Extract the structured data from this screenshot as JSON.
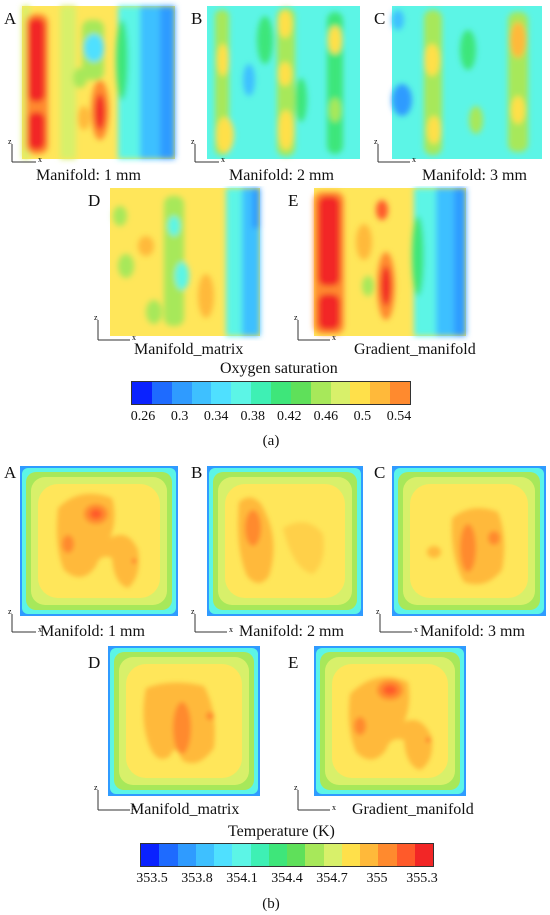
{
  "figure_a": {
    "panels": [
      {
        "letter": "A",
        "caption": "Manifold: 1 mm"
      },
      {
        "letter": "B",
        "caption": "Manifold: 2 mm"
      },
      {
        "letter": "C",
        "caption": "Manifold: 3 mm"
      },
      {
        "letter": "D",
        "caption": "Manifold_matrix"
      },
      {
        "letter": "E",
        "caption": "Gradient_manifold"
      }
    ],
    "colorbar": {
      "title": "Oxygen saturation",
      "ticks": [
        "0.26",
        "0.3",
        "0.34",
        "0.38",
        "0.42",
        "0.46",
        "0.5",
        "0.54"
      ]
    },
    "label": "(a)"
  },
  "figure_b": {
    "panels": [
      {
        "letter": "A",
        "caption": "Manifold: 1 mm"
      },
      {
        "letter": "B",
        "caption": "Manifold: 2 mm"
      },
      {
        "letter": "C",
        "caption": "Manifold: 3 mm"
      },
      {
        "letter": "D",
        "caption": "Manifold_matrix"
      },
      {
        "letter": "E",
        "caption": "Gradient_manifold"
      }
    ],
    "colorbar": {
      "title": "Temperature (K)",
      "ticks": [
        "353.5",
        "353.8",
        "354.1",
        "354.4",
        "354.7",
        "355",
        "355.3"
      ]
    },
    "label": "(b)"
  },
  "axis_labels": {
    "vertical": "z",
    "horizontal": "x"
  },
  "colors": {
    "scale": [
      "#0a22ff",
      "#1e6bff",
      "#2f9bff",
      "#3ec0ff",
      "#4fe0ff",
      "#5cf5e6",
      "#3ef0b4",
      "#3ee67a",
      "#5fe05a",
      "#a7e85a",
      "#d8f06a",
      "#ffe04a",
      "#ffb93a",
      "#ff8a2e",
      "#ff5a2a",
      "#f22626"
    ]
  }
}
